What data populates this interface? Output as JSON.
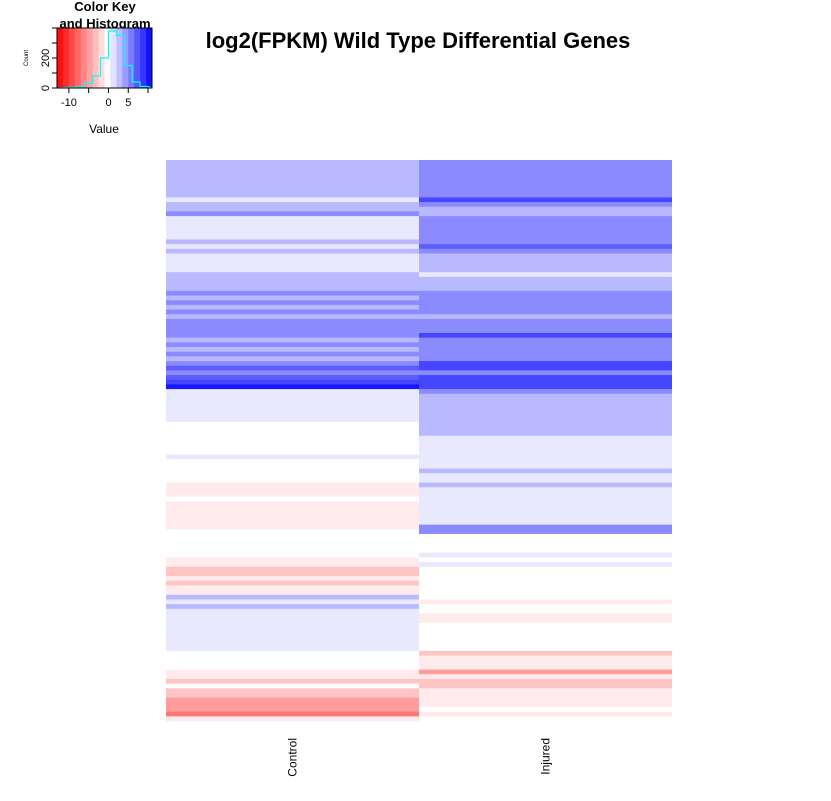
{
  "chart_data": {
    "type": "heatmap",
    "title": "log2(FPKM) Wild Type Differential Genes",
    "columns": [
      "Control",
      "Injured"
    ],
    "n_rows": 120,
    "value_range": [
      -13,
      11
    ],
    "colors": {
      "low": "#ff0000",
      "mid": "#ffffff",
      "high": "#0000ff",
      "histogram_line": "#00ffff"
    },
    "color_key": {
      "title_line1": "Color Key",
      "title_line2": "and Histogram",
      "xlabel": "Value",
      "ylabel": "Count",
      "x_ticks": [
        "-10",
        "0",
        "5"
      ],
      "x_tick_values": [
        -10,
        0,
        5
      ],
      "y_ticks": [
        "0",
        "200"
      ],
      "y_tick_values": [
        0,
        200
      ],
      "y_range": [
        0,
        400
      ],
      "histogram_bins": [
        {
          "x0": -10,
          "x1": -8,
          "count": 5
        },
        {
          "x0": -8,
          "x1": -6,
          "count": 8
        },
        {
          "x0": -6,
          "x1": -4,
          "count": 30
        },
        {
          "x0": -4,
          "x1": -2,
          "count": 80
        },
        {
          "x0": -2,
          "x1": 0,
          "count": 200
        },
        {
          "x0": 0,
          "x1": 2,
          "count": 380
        },
        {
          "x0": 2,
          "x1": 4,
          "count": 350
        },
        {
          "x0": 4,
          "x1": 6,
          "count": 150
        },
        {
          "x0": 6,
          "x1": 8,
          "count": 40
        },
        {
          "x0": 8,
          "x1": 10,
          "count": 10
        }
      ]
    },
    "values": [
      [
        3,
        5
      ],
      [
        3,
        5
      ],
      [
        3,
        5
      ],
      [
        3,
        5
      ],
      [
        3,
        5
      ],
      [
        3,
        5
      ],
      [
        3,
        5
      ],
      [
        3,
        5
      ],
      [
        1,
        8
      ],
      [
        3,
        5
      ],
      [
        3,
        3
      ],
      [
        5,
        3
      ],
      [
        1,
        5
      ],
      [
        1,
        5
      ],
      [
        1,
        5
      ],
      [
        1,
        5
      ],
      [
        1,
        5
      ],
      [
        3,
        5
      ],
      [
        1,
        7
      ],
      [
        3,
        5
      ],
      [
        1,
        3
      ],
      [
        1,
        3
      ],
      [
        1,
        3
      ],
      [
        1,
        3
      ],
      [
        3,
        1
      ],
      [
        3,
        3
      ],
      [
        3,
        3
      ],
      [
        3,
        3
      ],
      [
        5,
        5
      ],
      [
        3,
        5
      ],
      [
        5,
        5
      ],
      [
        3,
        5
      ],
      [
        5,
        5
      ],
      [
        3,
        3
      ],
      [
        5,
        5
      ],
      [
        5,
        5
      ],
      [
        5,
        5
      ],
      [
        5,
        8
      ],
      [
        3,
        5
      ],
      [
        5,
        5
      ],
      [
        3,
        5
      ],
      [
        5,
        5
      ],
      [
        3,
        5
      ],
      [
        5,
        8
      ],
      [
        7,
        8
      ],
      [
        5,
        5
      ],
      [
        7,
        8
      ],
      [
        8,
        8
      ],
      [
        10,
        8
      ],
      [
        1,
        5
      ],
      [
        1,
        3
      ],
      [
        1,
        3
      ],
      [
        1,
        3
      ],
      [
        1,
        3
      ],
      [
        1,
        3
      ],
      [
        1,
        3
      ],
      [
        0,
        3
      ],
      [
        0,
        3
      ],
      [
        0,
        3
      ],
      [
        0,
        1
      ],
      [
        0,
        1
      ],
      [
        0,
        1
      ],
      [
        0,
        1
      ],
      [
        1,
        1
      ],
      [
        0,
        1
      ],
      [
        0,
        1
      ],
      [
        0,
        3
      ],
      [
        0,
        1
      ],
      [
        0,
        1
      ],
      [
        -1,
        3
      ],
      [
        -1,
        1
      ],
      [
        -1,
        1
      ],
      [
        0,
        1
      ],
      [
        -1,
        1
      ],
      [
        -1,
        1
      ],
      [
        -1,
        1
      ],
      [
        -1,
        1
      ],
      [
        -1,
        1
      ],
      [
        -1,
        5
      ],
      [
        0,
        5
      ],
      [
        0,
        0
      ],
      [
        0,
        0
      ],
      [
        0,
        0
      ],
      [
        0,
        0
      ],
      [
        0,
        1
      ],
      [
        -1,
        0
      ],
      [
        -1,
        1
      ],
      [
        -3,
        0
      ],
      [
        -3,
        0
      ],
      [
        -1,
        0
      ],
      [
        -3,
        0
      ],
      [
        -1,
        0
      ],
      [
        -1,
        0
      ],
      [
        3,
        0
      ],
      [
        1,
        -1
      ],
      [
        3,
        0
      ],
      [
        1,
        0
      ],
      [
        1,
        -1
      ],
      [
        1,
        -1
      ],
      [
        1,
        0
      ],
      [
        1,
        0
      ],
      [
        1,
        0
      ],
      [
        1,
        0
      ],
      [
        1,
        0
      ],
      [
        1,
        0
      ],
      [
        0,
        -3
      ],
      [
        0,
        -1
      ],
      [
        0,
        -1
      ],
      [
        0,
        -1
      ],
      [
        -1,
        -5
      ],
      [
        -1,
        -1
      ],
      [
        -3,
        -3
      ],
      [
        0,
        -3
      ],
      [
        -3,
        -1
      ],
      [
        -3,
        -1
      ],
      [
        -5,
        -1
      ],
      [
        -5,
        -1
      ],
      [
        -5,
        0
      ],
      [
        -7,
        -1
      ],
      [
        -1,
        0
      ]
    ]
  }
}
